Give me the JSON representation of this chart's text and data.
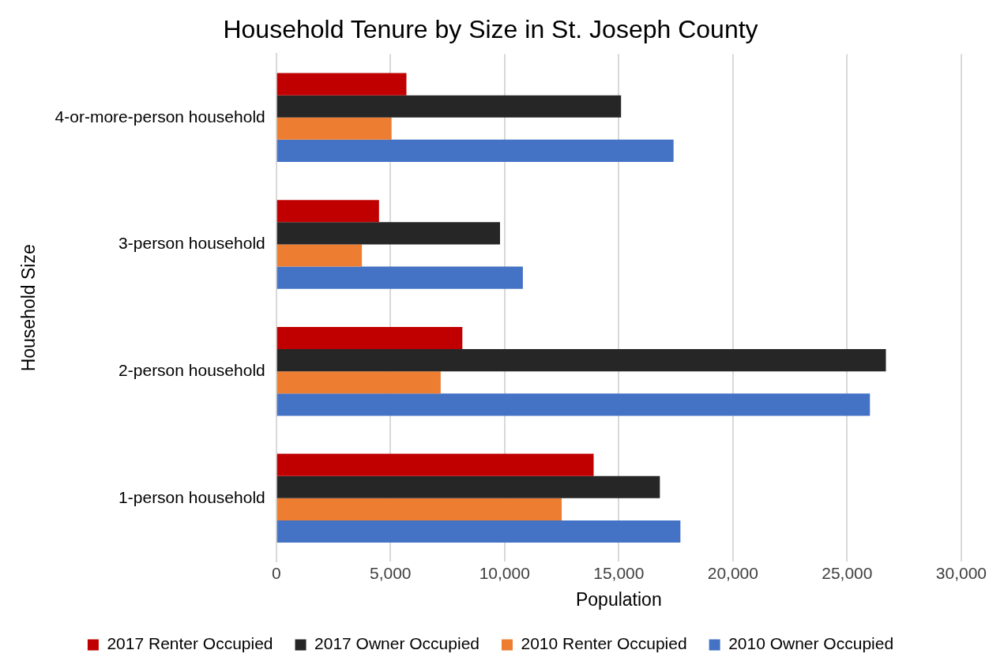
{
  "chart_data": {
    "type": "bar",
    "orientation": "horizontal",
    "title": "Household Tenure by Size in St. Joseph County",
    "xlabel": "Population",
    "ylabel": "Household Size",
    "categories": [
      "4-or-more-person household",
      "3-person household",
      "2-person household",
      "1-person household"
    ],
    "series": [
      {
        "name": "2017 Renter Occupied",
        "color": "#c00000",
        "values": [
          5700,
          4500,
          8150,
          13900
        ]
      },
      {
        "name": "2017 Owner Occupied",
        "color": "#262626",
        "values": [
          15100,
          9800,
          26700,
          16800
        ]
      },
      {
        "name": "2010 Renter Occupied",
        "color": "#ed7d31",
        "values": [
          5050,
          3750,
          7200,
          12500
        ]
      },
      {
        "name": "2010 Owner Occupied",
        "color": "#4472c4",
        "values": [
          17400,
          10800,
          26000,
          17700
        ]
      }
    ],
    "xlim": [
      0,
      30000
    ],
    "xticks": [
      {
        "value": 0,
        "label": "0"
      },
      {
        "value": 5000,
        "label": "5,000"
      },
      {
        "value": 10000,
        "label": "10,000"
      },
      {
        "value": 15000,
        "label": "15,000"
      },
      {
        "value": 20000,
        "label": "20,000"
      },
      {
        "value": 25000,
        "label": "25,000"
      },
      {
        "value": 30000,
        "label": "30,000"
      }
    ],
    "grid": "x",
    "legend": "bottom"
  }
}
